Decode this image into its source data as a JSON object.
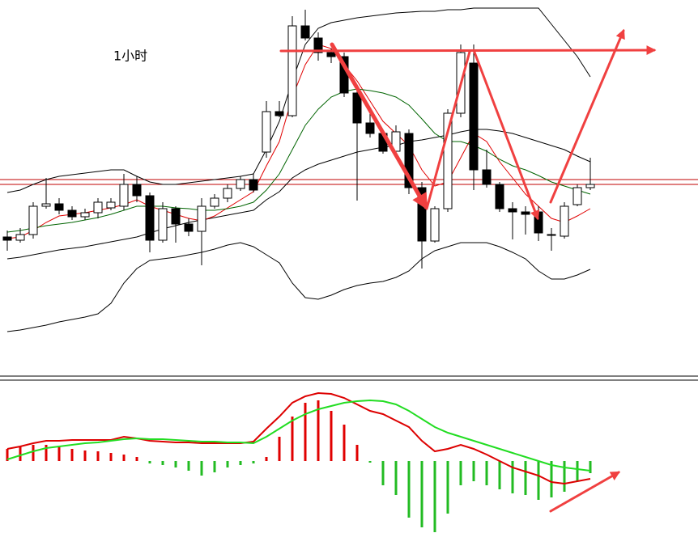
{
  "chart_data": [
    {
      "type": "candlestick",
      "title": "1小时",
      "open": [
        172,
        168,
        175,
        210,
        213,
        205,
        197,
        202,
        208,
        210,
        237,
        223,
        168,
        207,
        188,
        179,
        210,
        220,
        232,
        243,
        277,
        327,
        322,
        433,
        418,
        400,
        395,
        350,
        313,
        300,
        278,
        300,
        233,
        167,
        207,
        325,
        387,
        255,
        237,
        207,
        203,
        203,
        175,
        173,
        212,
        233
      ],
      "high": [
        180,
        183,
        215,
        245,
        220,
        210,
        207,
        220,
        220,
        250,
        247,
        227,
        215,
        210,
        195,
        220,
        225,
        237,
        247,
        250,
        340,
        340,
        445,
        453,
        425,
        405,
        400,
        355,
        325,
        305,
        310,
        305,
        240,
        210,
        330,
        410,
        410,
        280,
        240,
        215,
        210,
        210,
        183,
        215,
        237,
        270
      ],
      "low": [
        155,
        165,
        170,
        207,
        200,
        193,
        193,
        195,
        205,
        205,
        215,
        153,
        165,
        165,
        173,
        137,
        207,
        215,
        229,
        227,
        270,
        320,
        320,
        415,
        390,
        387,
        345,
        217,
        295,
        275,
        275,
        225,
        133,
        165,
        203,
        320,
        230,
        233,
        203,
        169,
        175,
        167,
        155,
        170,
        210,
        230
      ],
      "close": [
        168,
        175,
        210,
        213,
        205,
        197,
        202,
        215,
        215,
        237,
        223,
        168,
        207,
        188,
        179,
        210,
        220,
        232,
        243,
        230,
        327,
        322,
        433,
        418,
        400,
        395,
        350,
        313,
        300,
        278,
        302,
        233,
        167,
        207,
        325,
        400,
        255,
        237,
        207,
        203,
        200,
        177,
        175,
        210,
        233,
        237
      ],
      "up_color": "#ffffff",
      "down_color": "#000000",
      "ylim": [
        0,
        465
      ],
      "price_lines": {
        "color": "#c00000",
        "values": [
          243,
          237
        ]
      },
      "lines": [
        {
          "color": "#000000",
          "values": [
            227,
            230,
            237,
            243,
            247,
            249,
            251,
            253,
            255,
            255,
            247,
            240,
            237,
            237,
            239,
            241,
            243,
            245,
            247,
            250,
            280,
            315,
            365,
            410,
            430,
            437,
            440,
            443,
            445,
            447,
            449,
            450,
            451,
            451,
            453,
            453,
            455,
            455,
            455,
            455,
            455,
            455,
            435,
            415,
            395,
            370
          ]
        },
        {
          "color": "#000000",
          "values": [
            145,
            147,
            150,
            153,
            156,
            158,
            160,
            163,
            166,
            169,
            172,
            177,
            182,
            186,
            190,
            193,
            196,
            199,
            202,
            205,
            218,
            228,
            245,
            255,
            262,
            267,
            272,
            277,
            280,
            283,
            285,
            290,
            292,
            295,
            298,
            302,
            305,
            305,
            303,
            300,
            295,
            290,
            285,
            280,
            272,
            265
          ]
        },
        {
          "color": "#000000",
          "values": [
            55,
            57,
            60,
            63,
            67,
            70,
            73,
            77,
            90,
            115,
            133,
            143,
            145,
            147,
            150,
            153,
            157,
            162,
            165,
            160,
            150,
            140,
            115,
            97,
            95,
            100,
            107,
            112,
            115,
            117,
            122,
            130,
            145,
            155,
            160,
            165,
            165,
            165,
            160,
            153,
            145,
            130,
            120,
            120,
            125,
            132
          ]
        },
        {
          "color": "#e00000",
          "values": [
            170,
            172,
            180,
            190,
            198,
            200,
            202,
            205,
            208,
            212,
            218,
            210,
            205,
            200,
            195,
            192,
            198,
            208,
            218,
            228,
            260,
            290,
            345,
            385,
            410,
            405,
            385,
            365,
            340,
            315,
            300,
            285,
            255,
            235,
            240,
            270,
            300,
            290,
            265,
            245,
            225,
            210,
            195,
            190,
            198,
            207
          ]
        },
        {
          "color": "#006400",
          "values": [
            178,
            180,
            183,
            186,
            188,
            190,
            193,
            196,
            200,
            205,
            210,
            210,
            210,
            208,
            207,
            205,
            205,
            207,
            210,
            215,
            230,
            250,
            280,
            310,
            330,
            345,
            352,
            355,
            353,
            350,
            345,
            335,
            318,
            300,
            290,
            290,
            285,
            278,
            268,
            260,
            255,
            248,
            240,
            235,
            230,
            225
          ]
        }
      ]
    },
    {
      "type": "macd",
      "ylim": [
        -89,
        100
      ],
      "pos_color": "#e00000",
      "neg_color": "#22bb22",
      "histogram": [
        15,
        18,
        20,
        20,
        18,
        15,
        13,
        12,
        10,
        8,
        5,
        -3,
        -5,
        -8,
        -12,
        -18,
        -14,
        -8,
        -5,
        -3,
        5,
        30,
        55,
        72,
        75,
        62,
        45,
        20,
        -2,
        -30,
        -42,
        -70,
        -82,
        -88,
        -65,
        -30,
        -25,
        -30,
        -35,
        -40,
        -42,
        -48,
        -45,
        -38,
        -25,
        -15
      ],
      "lines": [
        {
          "color": "#dd0000",
          "values": [
            15,
            18,
            22,
            25,
            25,
            26,
            26,
            26,
            26,
            30,
            28,
            25,
            24,
            23,
            23,
            22,
            22,
            22,
            22,
            24,
            40,
            55,
            72,
            80,
            84,
            83,
            78,
            70,
            62,
            58,
            50,
            42,
            25,
            12,
            15,
            20,
            15,
            8,
            0,
            -8,
            -13,
            -18,
            -26,
            -28,
            -25,
            -22
          ]
        },
        {
          "color": "#22dd22",
          "values": [
            2,
            7,
            12,
            16,
            18,
            20,
            22,
            23,
            25,
            27,
            28,
            27,
            27,
            26,
            25,
            24,
            24,
            23,
            23,
            22,
            30,
            40,
            50,
            58,
            64,
            68,
            72,
            74,
            75,
            74,
            70,
            62,
            52,
            42,
            35,
            30,
            25,
            20,
            15,
            10,
            5,
            0,
            -5,
            -8,
            -10,
            -12
          ]
        }
      ]
    }
  ]
}
